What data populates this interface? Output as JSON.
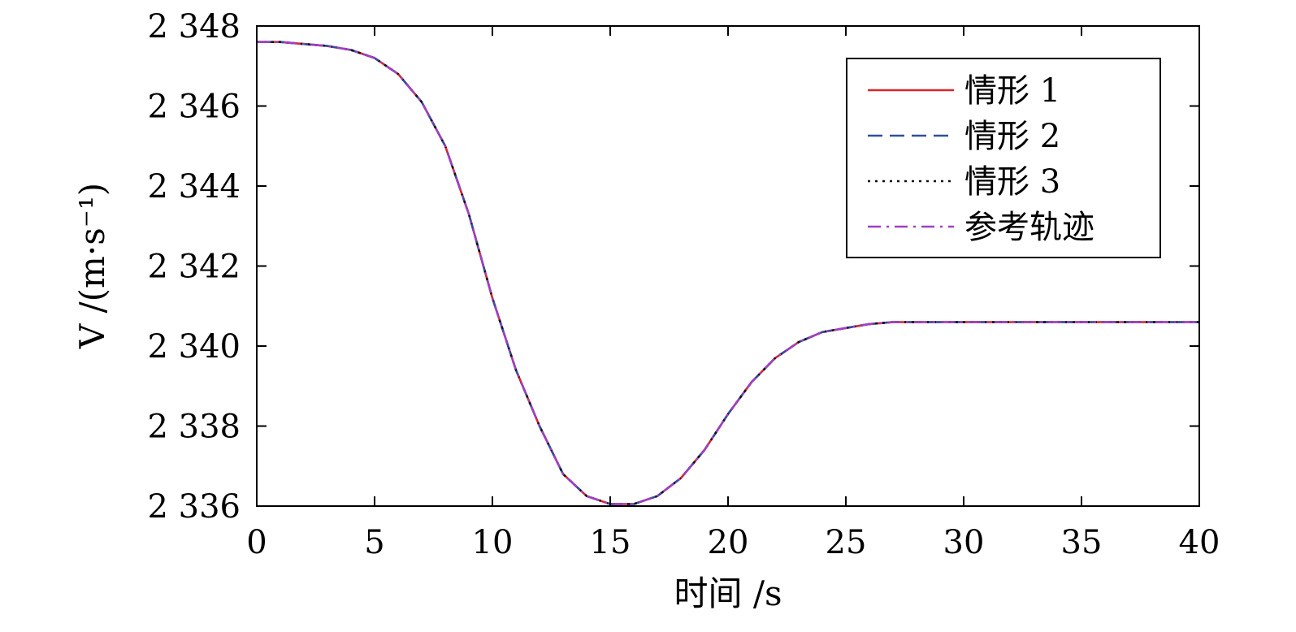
{
  "chart_data": {
    "type": "line",
    "title": "",
    "xlabel": "时间 /s",
    "ylabel": "V /(m·s⁻¹)",
    "xlim": [
      0,
      40
    ],
    "ylim": [
      2336,
      2348
    ],
    "xticks": [
      0,
      5,
      10,
      15,
      20,
      25,
      30,
      35,
      40
    ],
    "xtick_labels": [
      "0",
      "5",
      "10",
      "15",
      "20",
      "25",
      "30",
      "35",
      "40"
    ],
    "yticks": [
      2336,
      2338,
      2340,
      2342,
      2344,
      2346,
      2348
    ],
    "ytick_labels": [
      "2 336",
      "2 338",
      "2 340",
      "2 342",
      "2 344",
      "2 346",
      "2 348"
    ],
    "grid": false,
    "legend_position": "top-right",
    "x": [
      0,
      1,
      2,
      3,
      4,
      5,
      6,
      7,
      8,
      9,
      10,
      11,
      12,
      13,
      14,
      15,
      16,
      17,
      18,
      19,
      20,
      21,
      22,
      23,
      24,
      25,
      26,
      27,
      28,
      29,
      30,
      31,
      32,
      33,
      34,
      35,
      36,
      37,
      38,
      39,
      40
    ],
    "series": [
      {
        "name": "情形 1",
        "color": "#d62728",
        "dash": "solid",
        "values": [
          2347.6,
          2347.6,
          2347.55,
          2347.5,
          2347.4,
          2347.2,
          2346.8,
          2346.1,
          2345.0,
          2343.3,
          2341.2,
          2339.4,
          2338.0,
          2336.8,
          2336.25,
          2336.05,
          2336.05,
          2336.25,
          2336.7,
          2337.4,
          2338.3,
          2339.1,
          2339.7,
          2340.1,
          2340.35,
          2340.45,
          2340.55,
          2340.6,
          2340.6,
          2340.6,
          2340.6,
          2340.6,
          2340.6,
          2340.6,
          2340.6,
          2340.6,
          2340.6,
          2340.6,
          2340.6,
          2340.6,
          2340.6
        ]
      },
      {
        "name": "情形 2",
        "color": "#2f4f9f",
        "dash": "dashed",
        "values": [
          2347.6,
          2347.6,
          2347.55,
          2347.5,
          2347.4,
          2347.2,
          2346.8,
          2346.1,
          2345.0,
          2343.3,
          2341.2,
          2339.4,
          2338.0,
          2336.8,
          2336.25,
          2336.05,
          2336.05,
          2336.25,
          2336.7,
          2337.4,
          2338.3,
          2339.1,
          2339.7,
          2340.1,
          2340.35,
          2340.45,
          2340.55,
          2340.6,
          2340.6,
          2340.6,
          2340.6,
          2340.6,
          2340.6,
          2340.6,
          2340.6,
          2340.6,
          2340.6,
          2340.6,
          2340.6,
          2340.6,
          2340.6
        ]
      },
      {
        "name": "情形 3",
        "color": "#111111",
        "dash": "dotted",
        "values": [
          2347.6,
          2347.6,
          2347.55,
          2347.5,
          2347.4,
          2347.2,
          2346.8,
          2346.1,
          2345.0,
          2343.3,
          2341.2,
          2339.4,
          2338.0,
          2336.8,
          2336.25,
          2336.05,
          2336.05,
          2336.25,
          2336.7,
          2337.4,
          2338.3,
          2339.1,
          2339.7,
          2340.1,
          2340.35,
          2340.45,
          2340.55,
          2340.6,
          2340.6,
          2340.6,
          2340.6,
          2340.6,
          2340.6,
          2340.6,
          2340.6,
          2340.6,
          2340.6,
          2340.6,
          2340.6,
          2340.6,
          2340.6
        ]
      },
      {
        "name": "参考轨迹",
        "color": "#a040c0",
        "dash": "dashdot",
        "values": [
          2347.6,
          2347.6,
          2347.55,
          2347.5,
          2347.4,
          2347.2,
          2346.8,
          2346.1,
          2345.0,
          2343.3,
          2341.2,
          2339.4,
          2338.0,
          2336.8,
          2336.25,
          2336.05,
          2336.05,
          2336.25,
          2336.7,
          2337.4,
          2338.3,
          2339.1,
          2339.7,
          2340.1,
          2340.35,
          2340.45,
          2340.55,
          2340.6,
          2340.6,
          2340.6,
          2340.6,
          2340.6,
          2340.6,
          2340.6,
          2340.6,
          2340.6,
          2340.6,
          2340.6,
          2340.6,
          2340.6,
          2340.6
        ]
      }
    ]
  }
}
